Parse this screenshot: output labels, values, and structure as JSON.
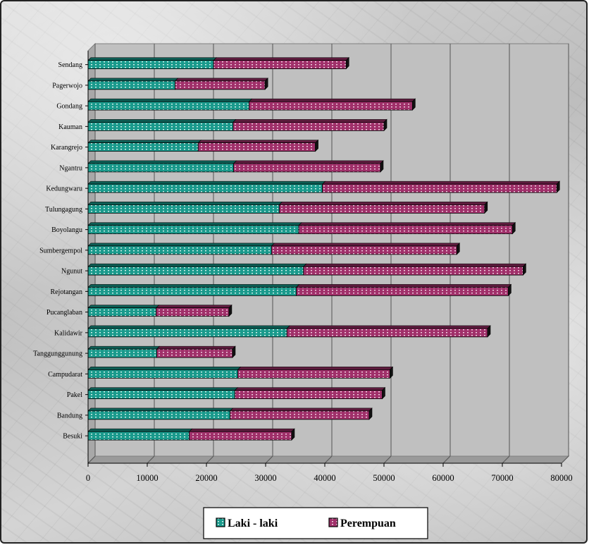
{
  "chart_data": {
    "type": "bar",
    "orientation": "horizontal",
    "stacked": true,
    "categories": [
      "Sendang",
      "Pagerwojo",
      "Gondang",
      "Kauman",
      "Karangrejo",
      "Ngantru",
      "Kedungwaru",
      "Tulungagung",
      "Boyolangu",
      "Sumbergempol",
      "Ngunut",
      "Rejotangan",
      "Pucanglaban",
      "Kalidawir",
      "Tanggunggunung",
      "Campudarat",
      "Pakel",
      "Bandung",
      "Besuki"
    ],
    "series": [
      {
        "name": "Laki - laki",
        "color": "#1a9a8c",
        "values": [
          21200,
          14700,
          27200,
          24500,
          18600,
          24600,
          39600,
          32300,
          35600,
          31000,
          36400,
          35200,
          11500,
          33600,
          11600,
          25300,
          24800,
          24000,
          17100
        ]
      },
      {
        "name": "Perempuan",
        "color": "#a0306a",
        "values": [
          22400,
          15200,
          27600,
          25500,
          19800,
          24800,
          39600,
          34700,
          36100,
          31300,
          37100,
          35800,
          12300,
          33900,
          12800,
          25700,
          24900,
          23500,
          17300
        ]
      }
    ],
    "xlim": [
      0,
      80000
    ],
    "xticks": [
      "0",
      "10000",
      "20000",
      "30000",
      "40000",
      "50000",
      "60000",
      "70000",
      "80000"
    ],
    "grid": true,
    "legend_position": "bottom"
  }
}
